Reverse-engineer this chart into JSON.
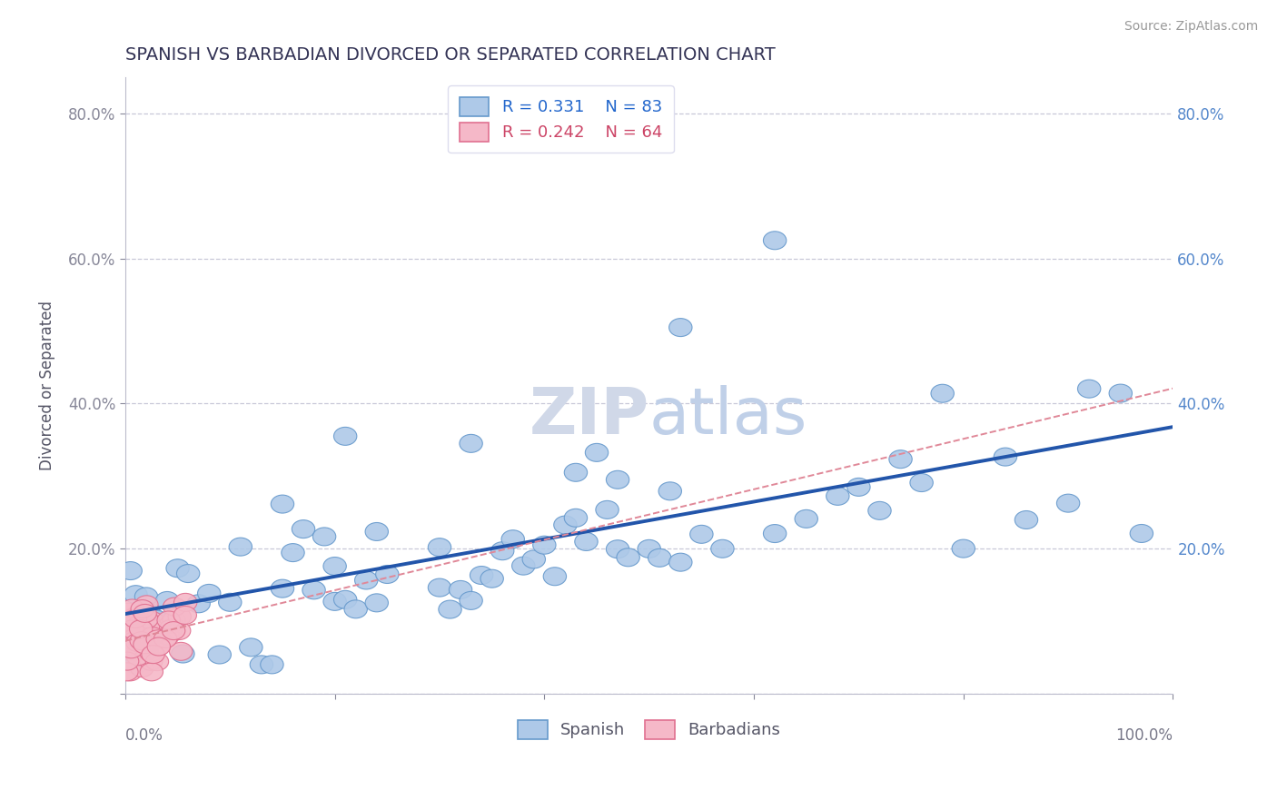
{
  "title": "SPANISH VS BARBADIAN DIVORCED OR SEPARATED CORRELATION CHART",
  "source": "Source: ZipAtlas.com",
  "ylabel": "Divorced or Separated",
  "xlim": [
    0.0,
    1.0
  ],
  "ylim": [
    0.0,
    0.85
  ],
  "ytick_vals": [
    0.0,
    0.2,
    0.4,
    0.6,
    0.8
  ],
  "yticklabels": [
    "",
    "20.0%",
    "40.0%",
    "60.0%",
    "80.0%"
  ],
  "xticklabels_left": "0.0%",
  "xticklabels_right": "100.0%",
  "spanish_R": 0.331,
  "spanish_N": 83,
  "barbadian_R": 0.242,
  "barbadian_N": 64,
  "spanish_color": "#aec9e8",
  "spanish_edge_color": "#6699cc",
  "barbadian_color": "#f5b8c8",
  "barbadian_edge_color": "#e07090",
  "spanish_line_color": "#2255aa",
  "barbadian_line_color": "#e08898",
  "grid_color": "#c8c8d8",
  "background_color": "#ffffff",
  "title_color": "#333355",
  "legend_text_color_blue": "#2266cc",
  "legend_text_color_pink": "#cc4466",
  "watermark_color": "#d0d8e8",
  "right_label_color": "#5588cc"
}
